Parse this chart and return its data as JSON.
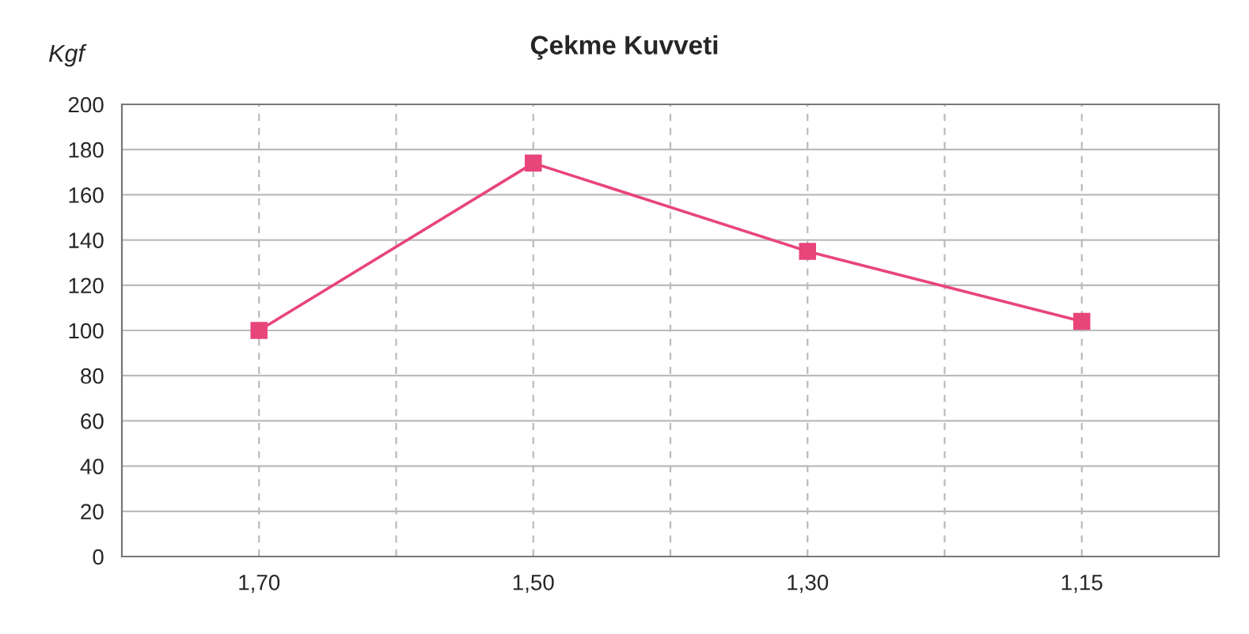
{
  "chart_data": {
    "type": "line",
    "title": "Çekme Kuvveti",
    "ylabel": "Kgf",
    "categories": [
      "1,70",
      "1,50",
      "1,30",
      "1,15"
    ],
    "series": [
      {
        "color": "#e8457a",
        "values": [
          100,
          174,
          135,
          104
        ]
      }
    ],
    "ylim": [
      0,
      200
    ],
    "yticks": [
      0,
      20,
      40,
      60,
      80,
      100,
      120,
      140,
      160,
      180,
      200
    ],
    "grid": true,
    "marker": "square",
    "line_style": "solid",
    "legend": false
  }
}
